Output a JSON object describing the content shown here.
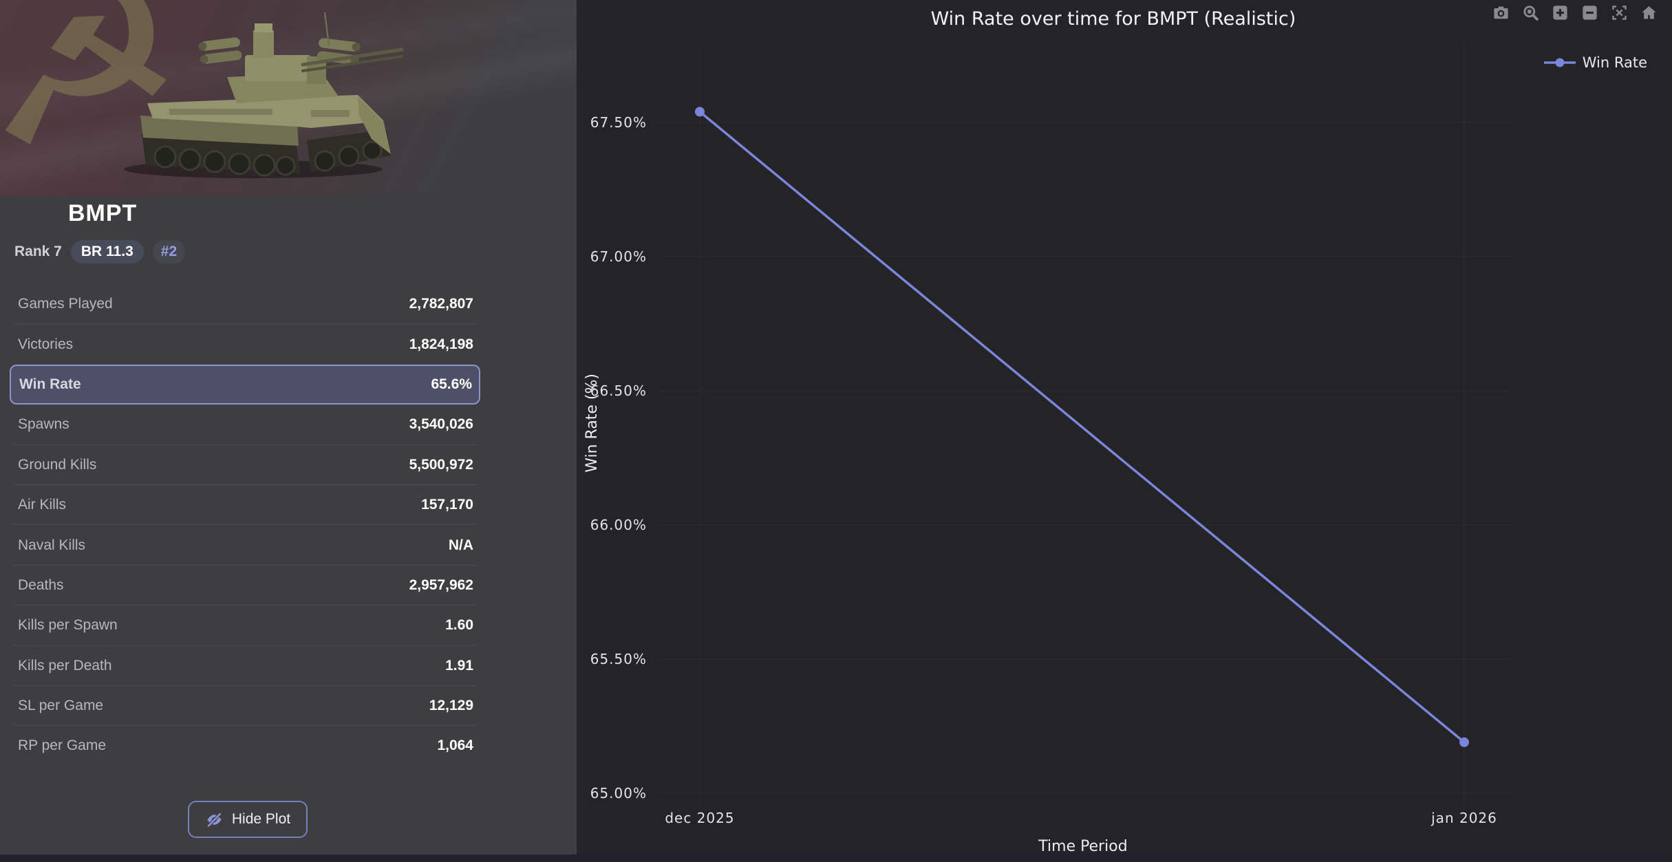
{
  "sidebar": {
    "vehicle_name": "BMPT",
    "badges": {
      "rank": "Rank 7",
      "br": "BR 11.3",
      "position": "#2"
    },
    "stats": [
      {
        "label": "Games Played",
        "value": "2,782,807",
        "highlighted": false
      },
      {
        "label": "Victories",
        "value": "1,824,198",
        "highlighted": false
      },
      {
        "label": "Win Rate",
        "value": "65.6%",
        "highlighted": true
      },
      {
        "label": "Spawns",
        "value": "3,540,026",
        "highlighted": false
      },
      {
        "label": "Ground Kills",
        "value": "5,500,972",
        "highlighted": false
      },
      {
        "label": "Air Kills",
        "value": "157,170",
        "highlighted": false
      },
      {
        "label": "Naval Kills",
        "value": "N/A",
        "highlighted": false
      },
      {
        "label": "Deaths",
        "value": "2,957,962",
        "highlighted": false
      },
      {
        "label": "Kills per Spawn",
        "value": "1.60",
        "highlighted": false
      },
      {
        "label": "Kills per Death",
        "value": "1.91",
        "highlighted": false
      },
      {
        "label": "SL per Game",
        "value": "12,129",
        "highlighted": false
      },
      {
        "label": "RP per Game",
        "value": "1,064",
        "highlighted": false
      }
    ],
    "hide_plot_label": "Hide Plot"
  },
  "chart_data": {
    "type": "line",
    "title": "Win Rate over time for BMPT (Realistic)",
    "xlabel": "Time Period",
    "ylabel": "Win Rate (%)",
    "categories": [
      "dec 2025",
      "jan 2026"
    ],
    "series": [
      {
        "name": "Win Rate",
        "values": [
          67.54,
          65.19
        ]
      }
    ],
    "ylim": [
      64.92,
      67.79
    ],
    "yticks": [
      65.0,
      65.5,
      66.0,
      66.5,
      67.0,
      67.5
    ],
    "ytick_labels": [
      "65.00%",
      "65.50%",
      "66.00%",
      "66.50%",
      "67.00%",
      "67.50%"
    ],
    "grid": true,
    "legend_position": "top-right",
    "line_color": "#7b85dc",
    "marker_color": "#7b85dc"
  },
  "modebar": {
    "icons": [
      "camera",
      "zoom",
      "zoom-in",
      "zoom-out",
      "autoscale",
      "home"
    ]
  },
  "colors": {
    "sidebar_bg": "#3e3e40",
    "chart_bg": "#242426",
    "accent": "#7b85dc",
    "highlight_bg": "#4d5066",
    "highlight_border": "#8d96cc",
    "divider": "#4f4f51",
    "bottom_bar": "#20232b",
    "gridline": "#2b2b2d"
  }
}
